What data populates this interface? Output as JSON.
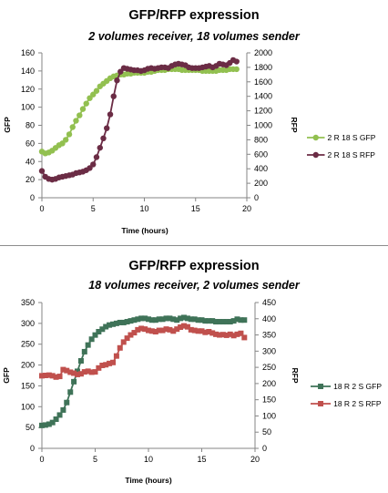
{
  "chart_data": [
    {
      "type": "line",
      "title": "GFP/RFP expression",
      "subtitle": "2 volumes receiver, 18 volumes sender",
      "xlabel": "Time (hours)",
      "ylabel": "GFP",
      "y2label": "RFP",
      "xlim": [
        0,
        20
      ],
      "xticks": [
        "0",
        "5",
        "10",
        "15",
        "20"
      ],
      "ylim": [
        0,
        160
      ],
      "yticks": [
        "0",
        "20",
        "40",
        "60",
        "80",
        "100",
        "120",
        "140",
        "160"
      ],
      "y2lim": [
        0,
        2000
      ],
      "y2ticks": [
        "0",
        "200",
        "400",
        "600",
        "800",
        "1000",
        "1200",
        "1400",
        "1600",
        "1800",
        "2000"
      ],
      "legend_position": "right",
      "grid": false,
      "series": [
        {
          "name": "2 R 18 S GFP",
          "axis": "left",
          "color": "#92c050",
          "marker": "circle",
          "x": [
            0,
            0.33,
            0.67,
            1,
            1.33,
            1.67,
            2,
            2.33,
            2.67,
            3,
            3.33,
            3.67,
            4,
            4.33,
            4.67,
            5,
            5.33,
            5.67,
            6,
            6.33,
            6.67,
            7,
            7.33,
            7.67,
            8,
            8.33,
            8.67,
            9,
            9.33,
            9.67,
            10,
            10.33,
            10.67,
            11,
            11.33,
            11.67,
            12,
            12.33,
            12.67,
            13,
            13.33,
            13.67,
            14,
            14.33,
            14.67,
            15,
            15.33,
            15.67,
            16,
            16.33,
            16.67,
            17,
            17.33,
            17.67,
            18,
            18.33,
            18.67,
            19
          ],
          "y": [
            51,
            49,
            50,
            52,
            55,
            58,
            60,
            64,
            70,
            78,
            85,
            91,
            98,
            104,
            110,
            114,
            118,
            123,
            126,
            129,
            132,
            134,
            135,
            136,
            136,
            137,
            137,
            138,
            138,
            138,
            138,
            139,
            139,
            140,
            141,
            141,
            141,
            142,
            142,
            142,
            142,
            141,
            141,
            141,
            141,
            141,
            141,
            140,
            140,
            140,
            140,
            140,
            141,
            141,
            141,
            142,
            142,
            142
          ]
        },
        {
          "name": "2 R 18 S RFP",
          "axis": "right",
          "color": "#6b2c45",
          "marker": "circle",
          "x": [
            0,
            0.33,
            0.67,
            1,
            1.33,
            1.67,
            2,
            2.33,
            2.67,
            3,
            3.33,
            3.67,
            4,
            4.33,
            4.67,
            5,
            5.33,
            5.67,
            6,
            6.33,
            6.67,
            7,
            7.33,
            7.67,
            8,
            8.33,
            8.67,
            9,
            9.33,
            9.67,
            10,
            10.33,
            10.67,
            11,
            11.33,
            11.67,
            12,
            12.33,
            12.67,
            13,
            13.33,
            13.67,
            14,
            14.33,
            14.67,
            15,
            15.33,
            15.67,
            16,
            16.33,
            16.67,
            17,
            17.33,
            17.67,
            18,
            18.33,
            18.67,
            19
          ],
          "y": [
            370,
            290,
            260,
            250,
            260,
            280,
            290,
            300,
            310,
            320,
            340,
            350,
            360,
            380,
            410,
            460,
            560,
            690,
            820,
            960,
            1150,
            1400,
            1620,
            1740,
            1790,
            1780,
            1770,
            1760,
            1760,
            1750,
            1760,
            1780,
            1790,
            1780,
            1790,
            1800,
            1800,
            1790,
            1820,
            1840,
            1850,
            1840,
            1830,
            1800,
            1790,
            1790,
            1790,
            1800,
            1810,
            1820,
            1800,
            1820,
            1850,
            1840,
            1830,
            1860,
            1900,
            1880
          ]
        }
      ]
    },
    {
      "type": "line",
      "title": "GFP/RFP expression",
      "subtitle": "18 volumes receiver, 2 volumes sender",
      "xlabel": "Time (hours)",
      "ylabel": "GFP",
      "y2label": "RFP",
      "xlim": [
        0,
        20
      ],
      "xticks": [
        "0",
        "5",
        "10",
        "15",
        "20"
      ],
      "ylim": [
        0,
        350
      ],
      "yticks": [
        "0",
        "50",
        "100",
        "150",
        "200",
        "250",
        "300",
        "350"
      ],
      "y2lim": [
        0,
        450
      ],
      "y2ticks": [
        "0",
        "50",
        "100",
        "150",
        "200",
        "250",
        "300",
        "350",
        "400",
        "450"
      ],
      "legend_position": "right",
      "grid": false,
      "series": [
        {
          "name": "18 R 2 S GFP",
          "axis": "left",
          "color": "#3f7358",
          "marker": "square",
          "x": [
            0,
            0.33,
            0.67,
            1,
            1.33,
            1.67,
            2,
            2.33,
            2.67,
            3,
            3.33,
            3.67,
            4,
            4.33,
            4.67,
            5,
            5.33,
            5.67,
            6,
            6.33,
            6.67,
            7,
            7.33,
            7.67,
            8,
            8.33,
            8.67,
            9,
            9.33,
            9.67,
            10,
            10.33,
            10.67,
            11,
            11.33,
            11.67,
            12,
            12.33,
            12.67,
            13,
            13.33,
            13.67,
            14,
            14.33,
            14.67,
            15,
            15.33,
            15.67,
            16,
            16.33,
            16.67,
            17,
            17.33,
            17.67,
            18,
            18.33,
            18.67,
            19
          ],
          "y": [
            55,
            56,
            58,
            62,
            70,
            80,
            92,
            110,
            135,
            160,
            185,
            210,
            232,
            248,
            262,
            272,
            280,
            286,
            292,
            296,
            298,
            300,
            302,
            302,
            304,
            306,
            308,
            310,
            312,
            312,
            310,
            308,
            308,
            310,
            310,
            312,
            312,
            310,
            308,
            312,
            314,
            312,
            310,
            310,
            308,
            308,
            306,
            306,
            306,
            304,
            304,
            304,
            304,
            304,
            306,
            310,
            308,
            308
          ]
        },
        {
          "name": "18 R 2 S RFP",
          "axis": "right",
          "color": "#c0504d",
          "marker": "square",
          "x": [
            0,
            0.33,
            0.67,
            1,
            1.33,
            1.67,
            2,
            2.33,
            2.67,
            3,
            3.33,
            3.67,
            4,
            4.33,
            4.67,
            5,
            5.33,
            5.67,
            6,
            6.33,
            6.67,
            7,
            7.33,
            7.67,
            8,
            8.33,
            8.67,
            9,
            9.33,
            9.67,
            10,
            10.33,
            10.67,
            11,
            11.33,
            11.67,
            12,
            12.33,
            12.67,
            13,
            13.33,
            13.67,
            14,
            14.33,
            14.67,
            15,
            15.33,
            15.67,
            16,
            16.33,
            16.67,
            17,
            17.33,
            17.67,
            18,
            18.33,
            18.67,
            19
          ],
          "y": [
            224,
            225,
            226,
            224,
            220,
            222,
            243,
            240,
            235,
            232,
            228,
            230,
            236,
            238,
            235,
            236,
            248,
            256,
            258,
            262,
            265,
            285,
            310,
            328,
            340,
            350,
            357,
            366,
            370,
            368,
            364,
            362,
            360,
            364,
            364,
            368,
            366,
            362,
            368,
            374,
            378,
            375,
            366,
            364,
            362,
            362,
            358,
            360,
            356,
            352,
            350,
            351,
            349,
            352,
            348,
            352,
            355,
            342
          ]
        }
      ]
    }
  ]
}
